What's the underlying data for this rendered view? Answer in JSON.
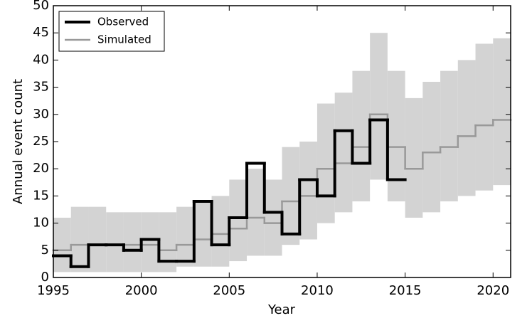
{
  "chart_data": {
    "type": "step",
    "x_label": "Year",
    "y_label": "Annual event count",
    "x": [
      1995,
      1996,
      1997,
      1998,
      1999,
      2000,
      2001,
      2002,
      2003,
      2004,
      2005,
      2006,
      2007,
      2008,
      2009,
      2010,
      2011,
      2012,
      2013,
      2014,
      2015,
      2016,
      2017,
      2018,
      2019,
      2020
    ],
    "series": [
      {
        "name": "Observed",
        "color": "#000000",
        "values": [
          4,
          2,
          6,
          6,
          5,
          7,
          3,
          3,
          14,
          6,
          11,
          21,
          12,
          8,
          18,
          15,
          27,
          21,
          29,
          18,
          null,
          null,
          null,
          null,
          null,
          null
        ]
      },
      {
        "name": "Simulated",
        "color": "#999999",
        "values": [
          5,
          6,
          6,
          6,
          6,
          6,
          5,
          6,
          7,
          8,
          9,
          11,
          10,
          14,
          15,
          20,
          21,
          24,
          30,
          24,
          20,
          23,
          24,
          26,
          28,
          29
        ]
      }
    ],
    "band": {
      "color": "#d3d3d3",
      "lower": [
        1,
        1,
        1,
        1,
        1,
        1,
        1,
        2,
        2,
        2,
        3,
        4,
        4,
        6,
        7,
        10,
        12,
        14,
        18,
        14,
        11,
        12,
        14,
        15,
        16,
        17
      ],
      "upper": [
        11,
        13,
        13,
        12,
        12,
        12,
        12,
        13,
        14,
        15,
        18,
        20,
        18,
        24,
        25,
        32,
        34,
        38,
        45,
        38,
        33,
        36,
        38,
        40,
        43,
        44
      ]
    },
    "xlim": [
      1995,
      2021
    ],
    "ylim": [
      0,
      50
    ],
    "xticks": [
      1995,
      2000,
      2005,
      2010,
      2015,
      2020
    ],
    "yticks": [
      0,
      5,
      10,
      15,
      20,
      25,
      30,
      35,
      40,
      45,
      50
    ],
    "legend": "upper left"
  }
}
